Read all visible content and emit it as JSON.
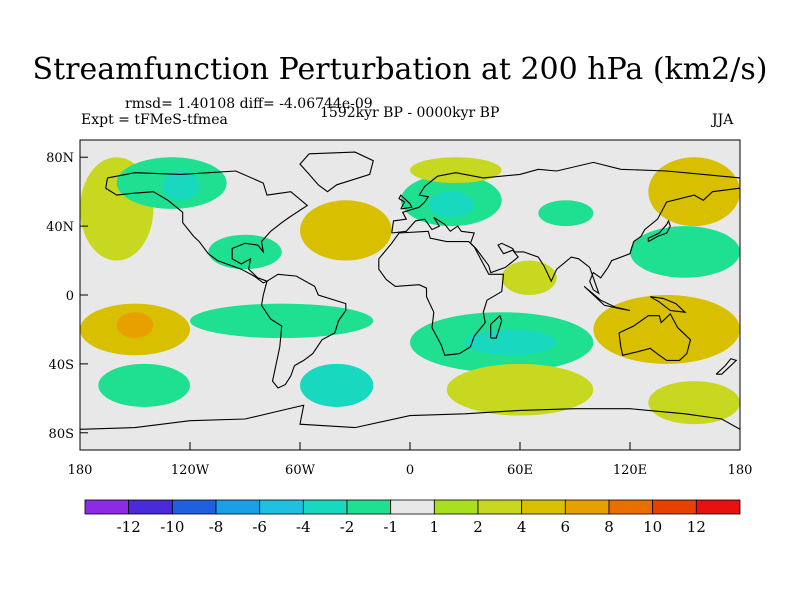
{
  "title": "Streamfunction Perturbation at 200 hPa (km2/s)",
  "stats_line": "rmsd= 1.40108 diff= -4.06744e-09",
  "experiment": "Expt = tFMeS-tfmea",
  "period": "1592kyr BP - 0000kyr BP",
  "season": "JJA",
  "colors": {
    "land_outline": "#000000",
    "neutral_fill": "#e8e8e8",
    "levels": [
      "#8b2be2",
      "#4b2ad9",
      "#2060e0",
      "#1aa0e6",
      "#20c0e0",
      "#18d8c0",
      "#1ee090",
      "#e8e8e8",
      "#a8e020",
      "#c8d820",
      "#d8c000",
      "#e8a000",
      "#e87000",
      "#e84000",
      "#e81010"
    ]
  },
  "chart_data": {
    "type": "contour-map",
    "projection": "cylindrical equidistant",
    "x_axis": {
      "range": [
        -180,
        180
      ],
      "ticks": [
        -180,
        -120,
        -60,
        0,
        60,
        120,
        180
      ],
      "tick_labels": [
        "180",
        "120W",
        "60W",
        "0",
        "60E",
        "120E",
        "180"
      ]
    },
    "y_axis": {
      "range": [
        -90,
        90
      ],
      "ticks": [
        80,
        40,
        0,
        -40,
        -80
      ],
      "tick_labels": [
        "80N",
        "40N",
        "0",
        "40S",
        "80S"
      ]
    },
    "colorbar": {
      "levels": [
        -14,
        -12,
        -10,
        -8,
        -6,
        -4,
        -2,
        -1,
        1,
        2,
        4,
        6,
        8,
        10,
        12,
        14
      ],
      "labels": [
        "-12",
        "-10",
        "-8",
        "-6",
        "-4",
        "-2",
        "-1",
        "1",
        "2",
        "4",
        "6",
        "8",
        "10",
        "12"
      ]
    },
    "anomaly_regions": [
      {
        "name": "north-pacific-high",
        "lon": [
          -180,
          -140
        ],
        "lat": [
          20,
          80
        ],
        "value": 2
      },
      {
        "name": "north-america-low",
        "lon": [
          -160,
          -100
        ],
        "lat": [
          50,
          80
        ],
        "value": -2
      },
      {
        "name": "canada-low-core",
        "lon": [
          -135,
          -115
        ],
        "lat": [
          55,
          72
        ],
        "value": -4
      },
      {
        "name": "north-atlantic-high",
        "lon": [
          -60,
          -10
        ],
        "lat": [
          20,
          55
        ],
        "value": 4
      },
      {
        "name": "east-us-low",
        "lon": [
          -110,
          -70
        ],
        "lat": [
          15,
          35
        ],
        "value": -2
      },
      {
        "name": "europe-low",
        "lon": [
          -5,
          50
        ],
        "lat": [
          40,
          70
        ],
        "value": -2
      },
      {
        "name": "europe-low-core",
        "lon": [
          10,
          35
        ],
        "lat": [
          45,
          60
        ],
        "value": -4
      },
      {
        "name": "arctic-russia-high",
        "lon": [
          0,
          50
        ],
        "lat": [
          65,
          80
        ],
        "value": 2
      },
      {
        "name": "central-asia-low",
        "lon": [
          70,
          100
        ],
        "lat": [
          40,
          55
        ],
        "value": -2
      },
      {
        "name": "siberia-high",
        "lon": [
          130,
          180
        ],
        "lat": [
          40,
          80
        ],
        "value": 4
      },
      {
        "name": "east-asia-low",
        "lon": [
          120,
          180
        ],
        "lat": [
          10,
          40
        ],
        "value": -2
      },
      {
        "name": "africa-high",
        "lon": [
          50,
          80
        ],
        "lat": [
          0,
          20
        ],
        "value": 2
      },
      {
        "name": "tropical-pacific-high",
        "lon": [
          -180,
          -120
        ],
        "lat": [
          -35,
          -5
        ],
        "value": 4
      },
      {
        "name": "tropical-pacific-core",
        "lon": [
          -160,
          -140
        ],
        "lat": [
          -25,
          -10
        ],
        "value": 6
      },
      {
        "name": "south-america-low",
        "lon": [
          -120,
          -20
        ],
        "lat": [
          -25,
          -5
        ],
        "value": -2
      },
      {
        "name": "south-africa-low",
        "lon": [
          0,
          100
        ],
        "lat": [
          -45,
          -10
        ],
        "value": -2
      },
      {
        "name": "south-africa-low-core",
        "lon": [
          30,
          80
        ],
        "lat": [
          -35,
          -20
        ],
        "value": -4
      },
      {
        "name": "australia-high",
        "lon": [
          100,
          180
        ],
        "lat": [
          -40,
          0
        ],
        "value": 4
      },
      {
        "name": "southern-ocean-low-1",
        "lon": [
          -170,
          -120
        ],
        "lat": [
          -65,
          -40
        ],
        "value": -2
      },
      {
        "name": "southern-ocean-low-2",
        "lon": [
          -60,
          -20
        ],
        "lat": [
          -65,
          -40
        ],
        "value": -4
      },
      {
        "name": "southern-ocean-high",
        "lon": [
          20,
          100
        ],
        "lat": [
          -70,
          -40
        ],
        "value": 2
      },
      {
        "name": "southern-ocean-high-2",
        "lon": [
          130,
          180
        ],
        "lat": [
          -75,
          -50
        ],
        "value": 2
      }
    ]
  }
}
